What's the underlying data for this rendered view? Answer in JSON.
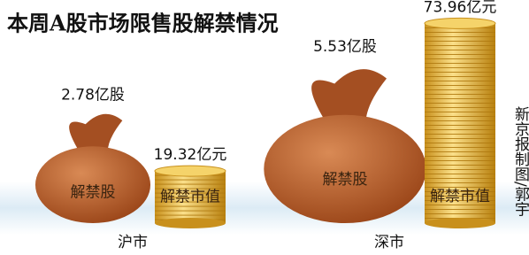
{
  "chart_data": {
    "type": "pictorial",
    "title": "本周A股市场限售股解禁情况",
    "categories": [
      "沪市",
      "深市"
    ],
    "series": [
      {
        "name": "解禁股",
        "shape": "bag",
        "color": "#b65a2c",
        "values": [
          2.78,
          5.53
        ],
        "value_labels": [
          "2.78亿股",
          "5.53亿股"
        ]
      },
      {
        "name": "解禁市值",
        "shape": "coins",
        "color": "#e6b53a",
        "values": [
          19.32,
          73.96
        ],
        "value_labels": [
          "19.32亿元",
          "73.96亿元"
        ]
      }
    ],
    "credit": "新京报制图/郭宇"
  }
}
